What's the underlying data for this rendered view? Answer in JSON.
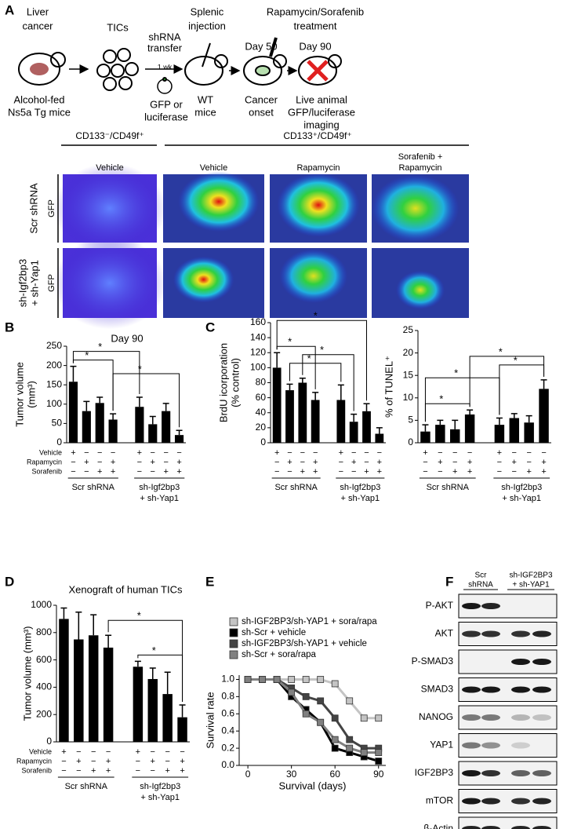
{
  "panels": [
    "A",
    "B",
    "C",
    "D",
    "E",
    "F"
  ],
  "schematic": [
    "Liver",
    "cancer",
    "Alcohol-fed",
    "Ns5a Tg mice",
    "TICs",
    "shRNA",
    "transfer",
    "1 wk",
    "GFP or",
    "luciferase",
    "Splenic",
    "injection",
    "WT",
    "mice",
    "Rapamycin/Sorafenib",
    "treatment",
    "Day 50",
    "Day 90",
    "Cancer",
    "onset",
    "Live animal",
    "GFP/luciferase",
    "imaging"
  ],
  "imaging": {
    "headers": [
      "CD133⁻/CD49f⁺",
      "CD133⁺/CD49f⁺"
    ],
    "columns": [
      [
        "Vehicle"
      ],
      [
        "Vehicle"
      ],
      [
        "Rapamycin"
      ],
      [
        "Sorafenib +",
        "Rapamycin"
      ]
    ],
    "rows": [
      {
        "label": [
          "Scr shRNA"
        ],
        "stain": "GFP"
      },
      {
        "label": [
          "sh-Igf2bp3",
          "+ sh-Yap1"
        ],
        "stain": "GFP"
      }
    ]
  },
  "chart_data": [
    {
      "type": "bar",
      "title": "Day 90",
      "y_label": [
        "Tumor volume",
        "(mm³)"
      ],
      "color": "#000000",
      "values": [
        158,
        82,
        103,
        60,
        null,
        93,
        48,
        82,
        20
      ],
      "errors": [
        40,
        25,
        15,
        15,
        null,
        25,
        20,
        20,
        12
      ],
      "ylim": [
        0,
        250
      ],
      "yticks": [
        0,
        50,
        100,
        150,
        200,
        250
      ],
      "treatments": [
        {
          "name": "Vehicle",
          "signs": [
            "+",
            "−",
            "−",
            "−",
            null,
            "+",
            "−",
            "−",
            "−"
          ]
        },
        {
          "name": "Rapamycin",
          "signs": [
            "−",
            "+",
            "−",
            "+",
            null,
            "−",
            "+",
            "−",
            "+"
          ]
        },
        {
          "name": "Sorafenib",
          "signs": [
            "−",
            "−",
            "+",
            "+",
            null,
            "−",
            "−",
            "+",
            "+"
          ]
        }
      ],
      "groups": [
        [
          "Scr shRNA"
        ],
        [
          "sh-Igf2bp3",
          "+ sh-Yap1"
        ]
      ],
      "significance": [
        {
          "label": "*",
          "between": [
            0,
            3
          ]
        },
        {
          "label": "*",
          "between": [
            0,
            5
          ]
        },
        {
          "label": "*",
          "between": [
            3,
            8
          ]
        }
      ]
    },
    {
      "type": "bar",
      "y_label": [
        "BrdU icorporation",
        "(% control)"
      ],
      "color": "#000000",
      "values": [
        100,
        70,
        80,
        57,
        null,
        57,
        28,
        42,
        12
      ],
      "errors": [
        20,
        8,
        6,
        10,
        null,
        20,
        10,
        10,
        8
      ],
      "ylim": [
        0,
        160
      ],
      "yticks": [
        0,
        20,
        40,
        60,
        80,
        100,
        120,
        140,
        160
      ],
      "treatments": [
        {
          "signs": [
            "+",
            "−",
            "−",
            "−",
            null,
            "+",
            "−",
            "−",
            "−"
          ]
        },
        {
          "signs": [
            "−",
            "+",
            "−",
            "+",
            null,
            "−",
            "+",
            "−",
            "+"
          ]
        },
        {
          "signs": [
            "−",
            "−",
            "+",
            "+",
            null,
            "−",
            "−",
            "+",
            "+"
          ]
        }
      ],
      "groups": [
        [
          "Scr shRNA"
        ],
        [
          "sh-Igf2bp3",
          "+ sh-Yap1"
        ]
      ],
      "significance": [
        {
          "label": "*",
          "between": [
            0,
            3
          ]
        },
        {
          "label": "*",
          "between": [
            1,
            5
          ]
        },
        {
          "label": "*",
          "between": [
            2,
            6
          ]
        },
        {
          "label": "*",
          "between": [
            0,
            7
          ]
        }
      ]
    },
    {
      "type": "bar",
      "y_label": [
        "% of TUNEL⁺"
      ],
      "color": "#000000",
      "values": [
        2.5,
        4,
        3,
        6.3,
        null,
        4,
        5.5,
        4.5,
        12
      ],
      "errors": [
        1.5,
        1,
        2,
        1,
        null,
        1.5,
        1,
        1.5,
        2
      ],
      "ylim": [
        0,
        25
      ],
      "yticks": [
        0,
        5,
        10,
        15,
        20,
        25
      ],
      "treatments": [
        {
          "signs": [
            "+",
            "−",
            "−",
            "−",
            null,
            "+",
            "−",
            "−",
            "−"
          ]
        },
        {
          "signs": [
            "−",
            "+",
            "−",
            "+",
            null,
            "−",
            "+",
            "−",
            "+"
          ]
        },
        {
          "signs": [
            "−",
            "−",
            "+",
            "+",
            null,
            "−",
            "−",
            "+",
            "+"
          ]
        }
      ],
      "groups": [
        [
          "Scr shRNA"
        ],
        [
          "sh-Igf2bp3",
          "+ sh-Yap1"
        ]
      ],
      "significance": [
        {
          "label": "*",
          "between": [
            0,
            3
          ]
        },
        {
          "label": "*",
          "between": [
            5,
            8
          ]
        },
        {
          "label": "*",
          "between": [
            3,
            8
          ]
        },
        {
          "label": "*",
          "between": [
            0,
            5
          ]
        }
      ]
    },
    {
      "type": "bar",
      "title": "Xenograft of human TICs",
      "y_label": [
        "Tumor volume (mm³)"
      ],
      "color": "#000000",
      "values": [
        900,
        750,
        780,
        690,
        null,
        550,
        460,
        350,
        180
      ],
      "errors": [
        80,
        200,
        150,
        90,
        null,
        40,
        80,
        160,
        90
      ],
      "ylim": [
        0,
        1000
      ],
      "yticks": [
        0,
        200,
        400,
        600,
        800,
        1000
      ],
      "treatments": [
        {
          "name": "Vehicle",
          "signs": [
            "+",
            "−",
            "−",
            "−",
            null,
            "+",
            "−",
            "−",
            "−"
          ]
        },
        {
          "name": "Rapamycin",
          "signs": [
            "−",
            "+",
            "−",
            "+",
            null,
            "−",
            "+",
            "−",
            "+"
          ]
        },
        {
          "name": "Sorafenib",
          "signs": [
            "−",
            "−",
            "+",
            "+",
            null,
            "−",
            "−",
            "+",
            "+"
          ]
        }
      ],
      "groups": [
        [
          "Scr shRNA"
        ],
        [
          "sh-Igf2bp3",
          "+ sh-Yap1"
        ]
      ],
      "significance": [
        {
          "label": "*",
          "between": [
            5,
            8
          ]
        },
        {
          "label": "*",
          "between": [
            3,
            8
          ]
        }
      ]
    },
    {
      "type": "line",
      "x_label": "Survival (days)",
      "y_label": [
        "Survival rate"
      ],
      "x": [
        0,
        10,
        20,
        30,
        40,
        50,
        60,
        70,
        80,
        90
      ],
      "xlim": [
        -6,
        95
      ],
      "xticks": [
        0,
        30,
        60,
        90
      ],
      "ylim": [
        0,
        1.05
      ],
      "yticks": [
        {
          "value": 0,
          "label": "0.0"
        },
        {
          "value": 0.2,
          "label": "0.2"
        },
        {
          "value": 0.4,
          "label": "0.4"
        },
        {
          "value": 0.6,
          "label": "0.6"
        },
        {
          "value": 0.8,
          "label": "0.8"
        },
        {
          "value": 1,
          "label": "1.0"
        }
      ],
      "series": [
        {
          "name": "sh-IGF2BP3/sh-YAP1 + sora/rapa",
          "color": "#c4c4c4",
          "values": [
            1,
            1,
            1,
            1,
            1,
            1,
            0.95,
            0.75,
            0.55,
            0.55
          ]
        },
        {
          "name": "sh-Scr + vehicle",
          "color": "#000000",
          "values": [
            1,
            1,
            1,
            0.8,
            0.65,
            0.5,
            0.2,
            0.15,
            0.1,
            0.05
          ]
        },
        {
          "name": "sh-IGF2BP3/sh-YAP1 + vehicle",
          "color": "#444444",
          "values": [
            1,
            1,
            1,
            0.9,
            0.8,
            0.75,
            0.55,
            0.3,
            0.2,
            0.2
          ]
        },
        {
          "name": "sh-Scr + sora/rapa",
          "color": "#808080",
          "values": [
            1,
            1,
            1,
            0.85,
            0.6,
            0.5,
            0.3,
            0.2,
            0.15,
            0.15
          ]
        }
      ]
    }
  ],
  "blot": {
    "lanes": [
      [
        "Scr",
        "shRNA"
      ],
      [
        "sh-IGF2BP3",
        "+ sh-YAP1"
      ]
    ],
    "rows": [
      {
        "label": "P-AKT",
        "bands": [
          0.9,
          0.85,
          0,
          0
        ]
      },
      {
        "label": "AKT",
        "bands": [
          0.8,
          0.8,
          0.8,
          0.85
        ]
      },
      {
        "label": "P-SMAD3",
        "bands": [
          0,
          0,
          0.9,
          0.9
        ]
      },
      {
        "label": "SMAD3",
        "bands": [
          0.9,
          0.9,
          0.9,
          0.9
        ]
      },
      {
        "label": "NANOG",
        "bands": [
          0.5,
          0.5,
          0.25,
          0.2
        ]
      },
      {
        "label": "YAP1",
        "bands": [
          0.5,
          0.4,
          0.15,
          0
        ]
      },
      {
        "label": "IGF2BP3",
        "bands": [
          0.9,
          0.8,
          0.6,
          0.6
        ]
      },
      {
        "label": "mTOR",
        "bands": [
          0.9,
          0.85,
          0.8,
          0.85
        ]
      },
      {
        "label": "β-Actin",
        "bands": [
          0.85,
          0.85,
          0.85,
          0.85
        ]
      }
    ]
  }
}
